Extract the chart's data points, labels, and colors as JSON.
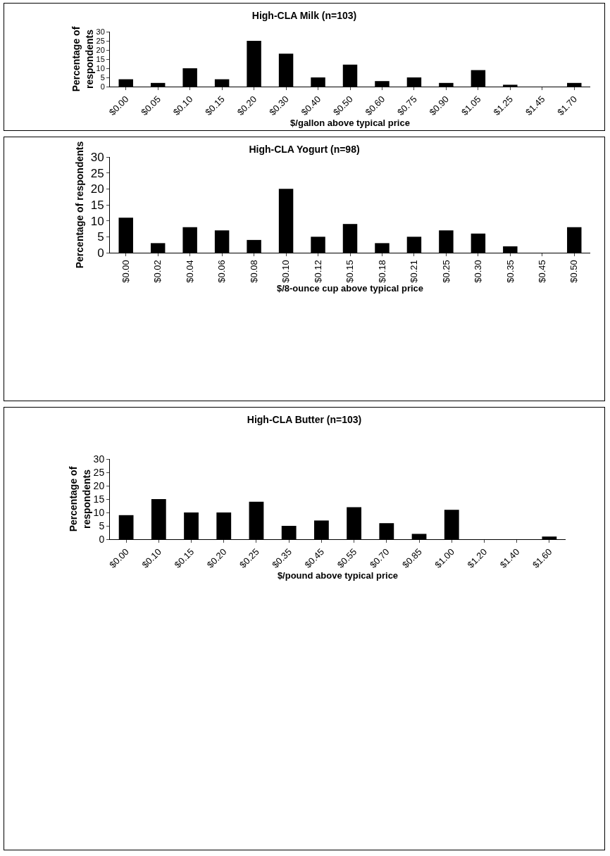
{
  "chart_data": [
    {
      "type": "bar",
      "title": "High-CLA Milk (n=103)",
      "xlabel": "$/gallon above typical price",
      "ylabel": "Percentage of respondents",
      "categories": [
        "$0.00",
        "$0.05",
        "$0.10",
        "$0.15",
        "$0.20",
        "$0.30",
        "$0.40",
        "$0.50",
        "$0.60",
        "$0.75",
        "$0.90",
        "$1.05",
        "$1.25",
        "$1.45",
        "$1.70"
      ],
      "values": [
        4,
        2,
        10,
        4,
        25,
        18,
        5,
        12,
        3,
        5,
        2,
        9,
        1,
        0,
        2
      ],
      "color": "#000000",
      "ylim": [
        0,
        30
      ],
      "yticks": [
        0,
        5,
        10,
        15,
        20,
        25,
        30
      ],
      "grid": false,
      "legend": false
    },
    {
      "type": "bar",
      "title": "High-CLA Yogurt (n=98)",
      "xlabel": "$/8-ounce cup above typical price",
      "ylabel": "Percentage of respondents",
      "categories": [
        "$0.00",
        "$0.02",
        "$0.04",
        "$0.06",
        "$0.08",
        "$0.10",
        "$0.12",
        "$0.15",
        "$0.18",
        "$0.21",
        "$0.25",
        "$0.30",
        "$0.35",
        "$0.45",
        "$0.50"
      ],
      "values": [
        11,
        3,
        8,
        7,
        4,
        20,
        5,
        9,
        3,
        5,
        7,
        6,
        2,
        0,
        8
      ],
      "color": "#000000",
      "ylim": [
        0,
        30
      ],
      "yticks": [
        0,
        5,
        10,
        15,
        20,
        25,
        30
      ],
      "grid": false,
      "legend": false
    },
    {
      "type": "bar",
      "title": "High-CLA Butter (n=103)",
      "xlabel": "$/pound above typical price",
      "ylabel": "Percentage of respondents",
      "categories": [
        "$0.00",
        "$0.10",
        "$0.15",
        "$0.20",
        "$0.25",
        "$0.35",
        "$0.45",
        "$0.55",
        "$0.70",
        "$0.85",
        "$1.00",
        "$1.20",
        "$1.40",
        "$1.60"
      ],
      "values": [
        9,
        15,
        10,
        10,
        14,
        5,
        7,
        12,
        6,
        2,
        11,
        0,
        0,
        1
      ],
      "color": "#000000",
      "ylim": [
        0,
        30
      ],
      "yticks": [
        0,
        5,
        10,
        15,
        20,
        25,
        30
      ],
      "grid": false,
      "legend": false
    }
  ]
}
